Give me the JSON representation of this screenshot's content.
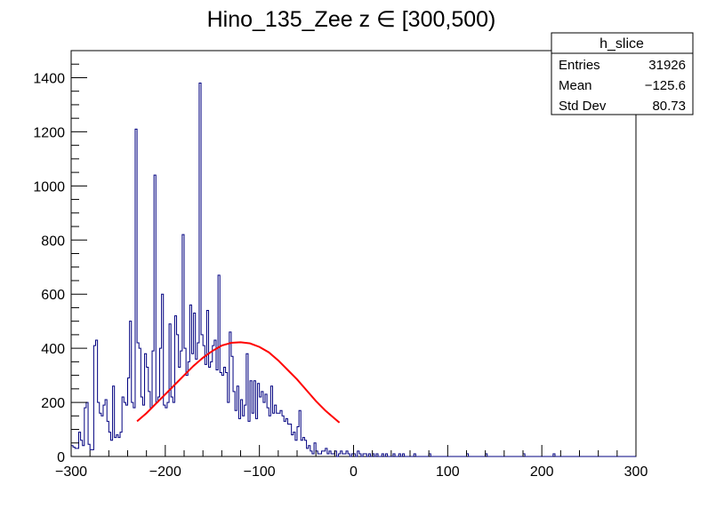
{
  "chart_data": {
    "type": "histogram",
    "title": "Hino_135_Zee z  ∈ [300,500)",
    "xlabel": "",
    "ylabel": "",
    "xlim": [
      -300,
      300
    ],
    "ylim": [
      0,
      1500
    ],
    "x_ticks": [
      -300,
      -200,
      -100,
      0,
      100,
      200,
      300
    ],
    "y_ticks": [
      0,
      200,
      400,
      600,
      800,
      1000,
      1200,
      1400
    ],
    "grid": false,
    "colors": {
      "histogram": "#000080",
      "fit": "#ff0000"
    },
    "stats_box": {
      "name": "h_slice",
      "rows": [
        {
          "label": "Entries",
          "value": "31926"
        },
        {
          "label": "Mean",
          "value": "−125.6"
        },
        {
          "label": "Std Dev",
          "value": "80.73"
        }
      ]
    },
    "histogram": {
      "bin_width": 2,
      "x_start": -300,
      "counts": [
        40,
        35,
        30,
        30,
        90,
        60,
        40,
        180,
        200,
        45,
        25,
        25,
        410,
        430,
        200,
        160,
        150,
        190,
        210,
        130,
        90,
        60,
        260,
        70,
        80,
        70,
        90,
        220,
        200,
        190,
        290,
        500,
        200,
        180,
        1210,
        420,
        400,
        220,
        190,
        380,
        330,
        240,
        180,
        390,
        1040,
        200,
        220,
        400,
        600,
        190,
        180,
        200,
        490,
        220,
        200,
        520,
        450,
        330,
        390,
        820,
        400,
        300,
        350,
        560,
        380,
        530,
        360,
        420,
        1380,
        450,
        410,
        340,
        540,
        330,
        350,
        410,
        430,
        320,
        670,
        310,
        300,
        330,
        310,
        200,
        460,
        370,
        240,
        170,
        260,
        140,
        210,
        150,
        190,
        380,
        130,
        280,
        160,
        280,
        140,
        270,
        220,
        240,
        200,
        230,
        180,
        150,
        260,
        160,
        190,
        160,
        160,
        170,
        150,
        130,
        140,
        120,
        120,
        80,
        90,
        60,
        110,
        170,
        60,
        70,
        60,
        30,
        40,
        20,
        10,
        50,
        20,
        10,
        10,
        20,
        20,
        30,
        10,
        20,
        10,
        10,
        20,
        0,
        10,
        20,
        10,
        10,
        20,
        10,
        0,
        10,
        10,
        0,
        20,
        10,
        0,
        10,
        10,
        0,
        10,
        0,
        10,
        0,
        10,
        0,
        0,
        10,
        0,
        10,
        0,
        0,
        0,
        10,
        0,
        0,
        10,
        0,
        10,
        0,
        0,
        0,
        0,
        0,
        10,
        0,
        0,
        0,
        0,
        0,
        0,
        0,
        10,
        0,
        0,
        0,
        0,
        0,
        0,
        0,
        0,
        0,
        0,
        0,
        0,
        0,
        0,
        0,
        0,
        0,
        0,
        0,
        10,
        0,
        0,
        0,
        0,
        0,
        0,
        0,
        0,
        0,
        10,
        0,
        0,
        0,
        0,
        0,
        0,
        0,
        0,
        0,
        0,
        0,
        0,
        0,
        0,
        0,
        0,
        0,
        0,
        0,
        10,
        0,
        0,
        0,
        0,
        0,
        0,
        0,
        0,
        0,
        0,
        0,
        0,
        0,
        0,
        0,
        10,
        0,
        0,
        0,
        0,
        0,
        0,
        0,
        0,
        0,
        0,
        0,
        0,
        0,
        0,
        0,
        0,
        0,
        0,
        0,
        0,
        0,
        0,
        0,
        0,
        0,
        0,
        0,
        0,
        0,
        0,
        0,
        0,
        0,
        0,
        0,
        0,
        0,
        0,
        0,
        0,
        0,
        0,
        0
      ]
    },
    "fit": {
      "type": "gaussian",
      "x_range": [
        -232,
        -15
      ],
      "x": [
        -230,
        -220,
        -210,
        -200,
        -190,
        -180,
        -170,
        -160,
        -150,
        -140,
        -130,
        -120,
        -110,
        -100,
        -90,
        -80,
        -70,
        -60,
        -50,
        -40,
        -30,
        -20,
        -15
      ],
      "y": [
        130,
        160,
        195,
        230,
        265,
        300,
        335,
        365,
        390,
        410,
        420,
        422,
        418,
        405,
        385,
        355,
        320,
        285,
        245,
        205,
        170,
        140,
        125
      ]
    }
  }
}
